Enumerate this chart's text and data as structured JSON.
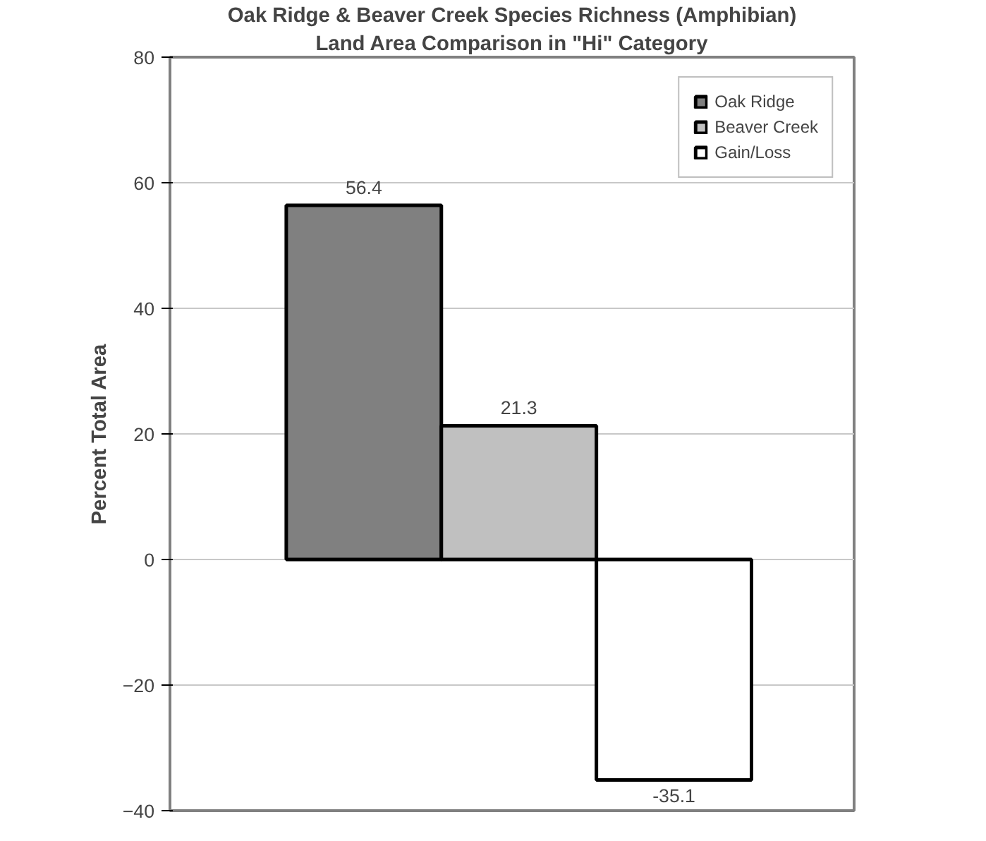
{
  "chart_data": {
    "type": "bar",
    "title": "Oak Ridge & Beaver Creek Species Richness (Amphibian)",
    "subtitle": "Land Area Comparison in \"Hi\" Category",
    "ylabel": "Percent Total Area",
    "categories": [
      null
    ],
    "series": [
      {
        "name": "Oak Ridge",
        "color": "#808080",
        "values": [
          56.4
        ]
      },
      {
        "name": "Beaver Creek",
        "color": "#c0c0c0",
        "values": [
          21.3
        ]
      },
      {
        "name": "Gain/Loss",
        "color": "#ffffff",
        "values": [
          -35.1
        ]
      }
    ],
    "ylim": [
      -40,
      80
    ],
    "yticks": [
      -40,
      -20,
      0,
      20,
      40,
      60,
      80
    ],
    "grid": "y",
    "legend": "top right",
    "data_labels": true
  }
}
